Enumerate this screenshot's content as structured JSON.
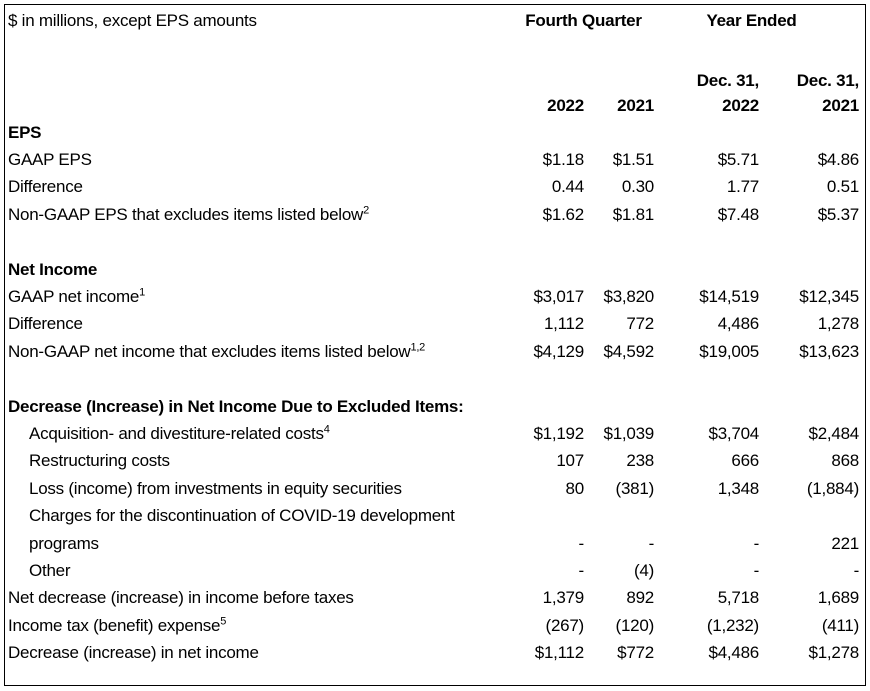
{
  "header": {
    "caption": "$ in millions, except EPS amounts",
    "col_groups": [
      {
        "label": "Fourth Quarter"
      },
      {
        "label": "Year Ended"
      }
    ],
    "date_labels": [
      "Dec. 31,",
      "Dec. 31,"
    ],
    "years": [
      "2022",
      "2021",
      "2022",
      "2021"
    ]
  },
  "rows": [
    {
      "type": "section",
      "label": "EPS"
    },
    {
      "type": "data",
      "label": "GAAP EPS",
      "values": [
        "$1.18",
        "$1.51",
        "$5.71",
        "$4.86"
      ]
    },
    {
      "type": "data",
      "label": "Difference",
      "values": [
        "0.44",
        "0.30",
        "1.77",
        "0.51"
      ]
    },
    {
      "type": "data",
      "label": "Non-GAAP EPS that excludes items listed below",
      "sup": "2",
      "values": [
        "$1.62",
        "$1.81",
        "$7.48",
        "$5.37"
      ]
    },
    {
      "type": "spacer"
    },
    {
      "type": "section",
      "label": "Net Income"
    },
    {
      "type": "data",
      "label": "GAAP net income",
      "sup": "1",
      "values": [
        "$3,017",
        "$3,820",
        "$14,519",
        "$12,345"
      ]
    },
    {
      "type": "data",
      "label": "Difference",
      "values": [
        "1,112",
        "772",
        "4,486",
        "1,278"
      ]
    },
    {
      "type": "data",
      "label": "Non-GAAP net income that excludes items listed below",
      "sup": "1,2",
      "values": [
        "$4,129",
        "$4,592",
        "$19,005",
        "$13,623"
      ]
    },
    {
      "type": "spacer"
    },
    {
      "type": "section",
      "label": "Decrease (Increase) in Net Income Due to Excluded Items:"
    },
    {
      "type": "data",
      "indent": true,
      "label": "Acquisition- and divestiture-related costs",
      "sup": "4",
      "values": [
        "$1,192",
        "$1,039",
        "$3,704",
        "$2,484"
      ]
    },
    {
      "type": "data",
      "indent": true,
      "label": "Restructuring costs",
      "values": [
        "107",
        "238",
        "666",
        "868"
      ]
    },
    {
      "type": "data",
      "indent": true,
      "label": "Loss (income) from investments in equity securities",
      "values": [
        "80",
        "(381)",
        "1,348",
        "(1,884)"
      ]
    },
    {
      "type": "data",
      "indent": true,
      "label": "Charges for the discontinuation of COVID-19 development",
      "values": [
        "",
        "",
        "",
        ""
      ]
    },
    {
      "type": "data",
      "indent": true,
      "label": "programs",
      "values": [
        "-",
        "-",
        "-",
        "221"
      ]
    },
    {
      "type": "data",
      "indent": true,
      "label": "Other",
      "values": [
        "-",
        "(4)",
        "-",
        "-"
      ]
    },
    {
      "type": "data",
      "label": "Net decrease (increase) in income before taxes",
      "values": [
        "1,379",
        "892",
        "5,718",
        "1,689"
      ]
    },
    {
      "type": "data",
      "label": "Income tax (benefit) expense",
      "sup": "5",
      "values": [
        "(267)",
        "(120)",
        "(1,232)",
        "(411)"
      ]
    },
    {
      "type": "data",
      "label": "Decrease (increase) in net income",
      "values": [
        "$1,112",
        "$772",
        "$4,486",
        "$1,278"
      ]
    }
  ],
  "colors": {
    "text": "#000000",
    "border": "#000000",
    "background": "#ffffff"
  }
}
